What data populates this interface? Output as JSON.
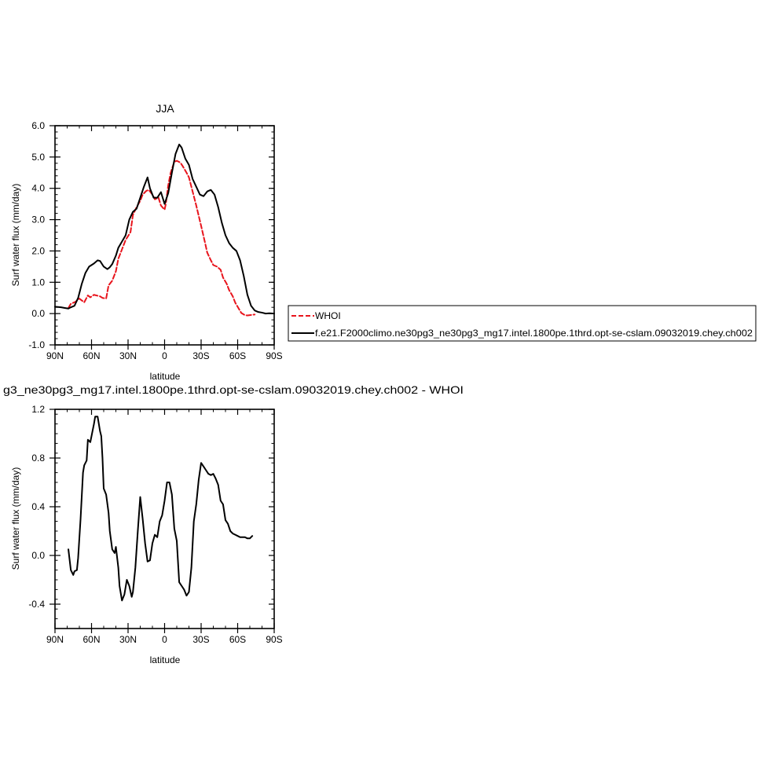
{
  "chart_data": [
    {
      "type": "line",
      "title": "JJA",
      "xlabel": "latitude",
      "ylabel": "Surf water flux (mm/day)",
      "xlim": [
        90,
        -90
      ],
      "ylim": [
        -1.0,
        6.0
      ],
      "xticks": [
        {
          "value": 90,
          "label": "90N"
        },
        {
          "value": 60,
          "label": "60N"
        },
        {
          "value": 30,
          "label": "30N"
        },
        {
          "value": 0,
          "label": "0"
        },
        {
          "value": -30,
          "label": "30S"
        },
        {
          "value": -60,
          "label": "60S"
        },
        {
          "value": -90,
          "label": "90S"
        }
      ],
      "yticks": [
        {
          "value": -1.0,
          "label": "-1.0"
        },
        {
          "value": 0.0,
          "label": "0.0"
        },
        {
          "value": 1.0,
          "label": "1.0"
        },
        {
          "value": 2.0,
          "label": "2.0"
        },
        {
          "value": 3.0,
          "label": "3.0"
        },
        {
          "value": 4.0,
          "label": "4.0"
        },
        {
          "value": 5.0,
          "label": "5.0"
        },
        {
          "value": 6.0,
          "label": "6.0"
        }
      ],
      "legend_position": "right",
      "series": [
        {
          "name": "WHOI",
          "color": "#e8141c",
          "dash": "dashed",
          "x": [
            79,
            77,
            73,
            71,
            70,
            68,
            66,
            63,
            61,
            58,
            53,
            51,
            48,
            46,
            43,
            40,
            38,
            35,
            32,
            28,
            26,
            23,
            20,
            18,
            15,
            13,
            10,
            8,
            5,
            3,
            0,
            -1,
            -3,
            -5,
            -8,
            -10,
            -13,
            -15,
            -18,
            -20,
            -23,
            -26,
            -30,
            -33,
            -35,
            -38,
            -40,
            -43,
            -46,
            -48,
            -51,
            -53,
            -56,
            -58,
            -61,
            -63,
            -66,
            -68,
            -70,
            -72,
            -74
          ],
          "y": [
            0.18,
            0.31,
            0.38,
            0.45,
            0.48,
            0.42,
            0.36,
            0.58,
            0.52,
            0.6,
            0.55,
            0.5,
            0.48,
            0.9,
            1.05,
            1.35,
            1.75,
            2.05,
            2.35,
            2.6,
            3.15,
            3.4,
            3.6,
            3.8,
            3.92,
            3.95,
            3.8,
            3.65,
            3.7,
            3.45,
            3.32,
            3.5,
            4.1,
            4.5,
            4.85,
            4.88,
            4.82,
            4.7,
            4.5,
            4.35,
            3.9,
            3.45,
            2.8,
            2.3,
            1.95,
            1.7,
            1.55,
            1.5,
            1.4,
            1.15,
            0.95,
            0.75,
            0.55,
            0.35,
            0.15,
            0.02,
            -0.05,
            -0.06,
            -0.05,
            -0.04,
            -0.03
          ]
        },
        {
          "name": "f.e21.F2000climo.ne30pg3_ne30pg3_mg17.intel.1800pe.1thrd.opt-se-cslam.09032019.chey.ch002",
          "color": "#000000",
          "dash": "solid",
          "x": [
            90,
            85,
            82,
            79,
            77,
            74,
            71,
            68,
            65,
            62,
            60,
            58,
            55,
            53,
            50,
            47,
            45,
            43,
            40,
            38,
            35,
            32,
            29,
            26,
            23,
            20,
            17,
            14,
            12,
            9,
            6,
            3,
            0,
            -3,
            -6,
            -9,
            -12,
            -14,
            -17,
            -20,
            -23,
            -26,
            -29,
            -32,
            -35,
            -38,
            -41,
            -44,
            -47,
            -50,
            -53,
            -56,
            -59,
            -62,
            -65,
            -68,
            -71,
            -74,
            -77,
            -80,
            -83,
            -86,
            -90
          ],
          "y": [
            0.22,
            0.2,
            0.18,
            0.16,
            0.2,
            0.25,
            0.5,
            0.95,
            1.3,
            1.5,
            1.55,
            1.6,
            1.7,
            1.68,
            1.5,
            1.42,
            1.48,
            1.58,
            1.85,
            2.1,
            2.3,
            2.5,
            3.0,
            3.25,
            3.35,
            3.7,
            4.05,
            4.35,
            4.0,
            3.7,
            3.7,
            3.88,
            3.5,
            3.85,
            4.5,
            5.1,
            5.4,
            5.3,
            4.95,
            4.75,
            4.3,
            4.05,
            3.8,
            3.75,
            3.9,
            3.95,
            3.8,
            3.4,
            2.9,
            2.5,
            2.25,
            2.1,
            2.0,
            1.7,
            1.2,
            0.6,
            0.25,
            0.1,
            0.05,
            0.03,
            0.0,
            0.01,
            0.0
          ]
        }
      ]
    },
    {
      "type": "line",
      "title": "g3_ne30pg3_mg17.intel.1800pe.1thrd.opt-se-cslam.09032019.chey.ch002 - WHOI",
      "xlabel": "latitude",
      "ylabel": "Surf water flux (mm/day)",
      "xlim": [
        90,
        -90
      ],
      "ylim": [
        -0.6,
        1.2
      ],
      "xticks": [
        {
          "value": 90,
          "label": "90N"
        },
        {
          "value": 60,
          "label": "60N"
        },
        {
          "value": 30,
          "label": "30N"
        },
        {
          "value": 0,
          "label": "0"
        },
        {
          "value": -30,
          "label": "30S"
        },
        {
          "value": -60,
          "label": "60S"
        },
        {
          "value": -90,
          "label": "90S"
        }
      ],
      "yticks": [
        {
          "value": -0.4,
          "label": "-0.4"
        },
        {
          "value": 0.0,
          "label": "0.0"
        },
        {
          "value": 0.4,
          "label": "0.4"
        },
        {
          "value": 0.8,
          "label": "0.8"
        },
        {
          "value": 1.2,
          "label": "1.2"
        }
      ],
      "series": [
        {
          "color": "#000000",
          "dash": "solid",
          "x": [
            79,
            77,
            75,
            74,
            72,
            71,
            69,
            67,
            66,
            64,
            63,
            61,
            60,
            58,
            57,
            55,
            54,
            53,
            52,
            51,
            50,
            48,
            46,
            45,
            43,
            41,
            40,
            38,
            37,
            35,
            33,
            31,
            29,
            27,
            26,
            24,
            22,
            20,
            18,
            16,
            14,
            12,
            10,
            8,
            6,
            4,
            2,
            0,
            -2,
            -4,
            -6,
            -8,
            -10,
            -12,
            -14,
            -16,
            -18,
            -20,
            -22,
            -24,
            -26,
            -28,
            -30,
            -32,
            -34,
            -36,
            -38,
            -40,
            -42,
            -44,
            -46,
            -48,
            -50,
            -52,
            -54,
            -56,
            -58,
            -60,
            -62,
            -64,
            -66,
            -68,
            -70,
            -72
          ],
          "y": [
            0.05,
            -0.12,
            -0.16,
            -0.13,
            -0.12,
            -0.02,
            0.3,
            0.68,
            0.74,
            0.78,
            0.95,
            0.93,
            0.98,
            1.08,
            1.14,
            1.14,
            1.08,
            1.02,
            0.98,
            0.8,
            0.55,
            0.5,
            0.35,
            0.2,
            0.05,
            0.02,
            0.07,
            -0.1,
            -0.25,
            -0.37,
            -0.32,
            -0.2,
            -0.25,
            -0.34,
            -0.3,
            -0.1,
            0.2,
            0.48,
            0.3,
            0.1,
            -0.05,
            -0.04,
            0.1,
            0.17,
            0.15,
            0.28,
            0.33,
            0.45,
            0.6,
            0.6,
            0.5,
            0.22,
            0.12,
            -0.22,
            -0.25,
            -0.28,
            -0.33,
            -0.3,
            -0.1,
            0.28,
            0.42,
            0.62,
            0.76,
            0.73,
            0.7,
            0.67,
            0.66,
            0.67,
            0.63,
            0.58,
            0.45,
            0.42,
            0.29,
            0.26,
            0.2,
            0.18,
            0.17,
            0.16,
            0.15,
            0.15,
            0.15,
            0.14,
            0.14,
            0.16
          ]
        }
      ]
    }
  ]
}
